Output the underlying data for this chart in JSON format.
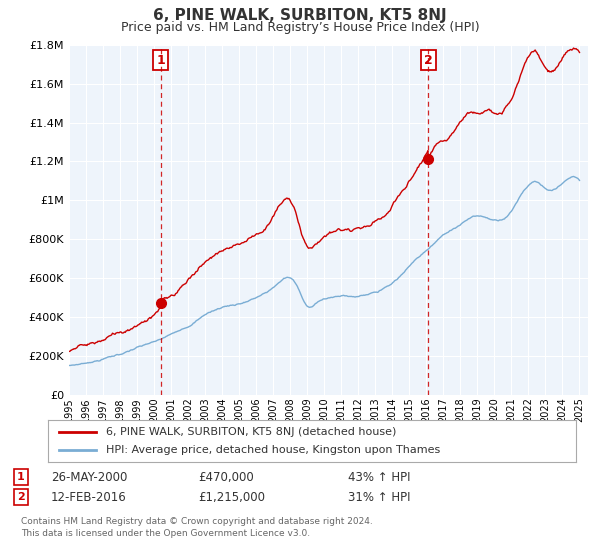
{
  "title": "6, PINE WALK, SURBITON, KT5 8NJ",
  "subtitle": "Price paid vs. HM Land Registry’s House Price Index (HPI)",
  "legend_line1": "6, PINE WALK, SURBITON, KT5 8NJ (detached house)",
  "legend_line2": "HPI: Average price, detached house, Kingston upon Thames",
  "annotation1_label": "1",
  "annotation1_date": "26-MAY-2000",
  "annotation1_price": "£470,000",
  "annotation1_hpi": "43% ↑ HPI",
  "annotation2_label": "2",
  "annotation2_date": "12-FEB-2016",
  "annotation2_price": "£1,215,000",
  "annotation2_hpi": "31% ↑ HPI",
  "footnote1": "Contains HM Land Registry data © Crown copyright and database right 2024.",
  "footnote2": "This data is licensed under the Open Government Licence v3.0.",
  "sale1_year": 2000.38,
  "sale1_price": 470000,
  "sale2_year": 2016.12,
  "sale2_price": 1215000,
  "ylim_min": 0,
  "ylim_max": 1800000,
  "xlim_min": 1995,
  "xlim_max": 2025.5,
  "red_color": "#cc0000",
  "blue_color": "#7aadd4",
  "plot_bg": "#eef4fb",
  "grid_color": "#ffffff",
  "bg_color": "#ffffff",
  "dashed_color": "#cc0000"
}
